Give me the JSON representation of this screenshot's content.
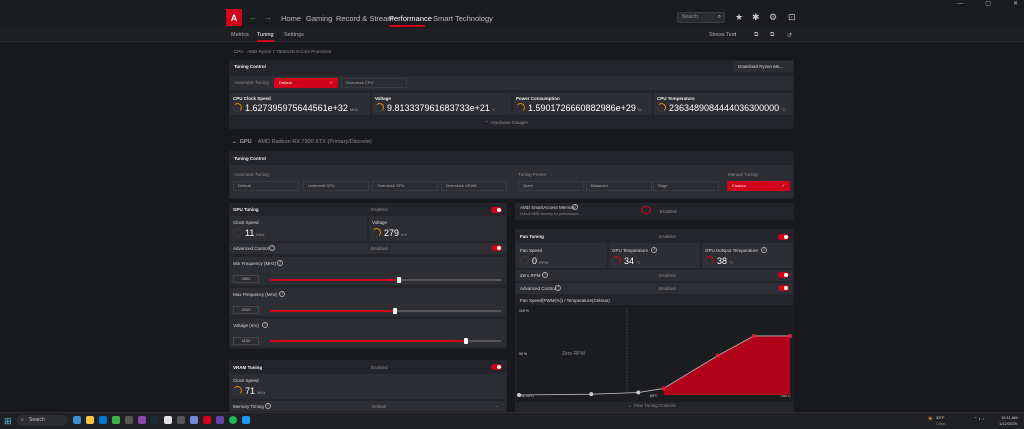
{
  "titlebar": {
    "minimize": "—",
    "maximize": "▢",
    "close": "✕"
  },
  "nav": {
    "logo": "A",
    "back": "←",
    "forward": "→",
    "items": [
      "Home",
      "Gaming",
      "Record & Stream",
      "Performance",
      "Smart Technology"
    ],
    "search_placeholder": "Search"
  },
  "subnav": {
    "items": [
      "Metrics",
      "Tuning",
      "Settings"
    ],
    "stress_test": "Stress Test"
  },
  "cpu": {
    "header": "CPU",
    "header_sub": "AMD Ryzen 7 7800X3D 8-Core Processor",
    "tuning_control": "Tuning Control",
    "download": "Download Ryzen Ma...",
    "automatic_tuning": "Automatic Tuning",
    "options": [
      "Default",
      "Overclock CPU"
    ],
    "metrics": [
      {
        "label": "CPU Clock Speed",
        "value": "1.627395975644561e+32",
        "unit": "MHz"
      },
      {
        "label": "Voltage",
        "value": "9.813337961683733e+21",
        "unit": "V"
      },
      {
        "label": "Power Consumption",
        "value": "1.5901726660882986e+29",
        "unit": "W"
      },
      {
        "label": "CPU Temperature",
        "value": "2363489084444036300000",
        "unit": "°C"
      }
    ],
    "hardware_gauges": "Hardware Gauges"
  },
  "gpu": {
    "header": "GPU",
    "header_sub": "AMD Radeon RX 7900 XTX (Primary/Discrete)",
    "tuning_control": "Tuning Control",
    "automatic_tuning": "Automatic Tuning",
    "auto_options": [
      "Default",
      "Undervolt GPU",
      "Overclock GPU",
      "Overclock VRAM"
    ],
    "tuning_preset": "Tuning Preset",
    "preset_options": [
      "Quiet",
      "Balanced",
      "Rage"
    ],
    "manual_tuning": "Manual Tuning",
    "manual_option": "Custom",
    "gpu_tuning": "GPU Tuning",
    "enabled": "Enabled",
    "clock_speed": "Clock Speed",
    "clock_value": "11",
    "clock_unit": "MHz",
    "voltage": "Voltage",
    "voltage_value": "279",
    "voltage_unit": "mV",
    "advanced_control": "Advanced Control",
    "min_freq": "Min Frequency (MHz)",
    "min_val": "2800",
    "max_freq": "Max Frequency (MHz)",
    "max_val": "2900",
    "voltage_mv": "Voltage (mV)",
    "volt_val": "1150",
    "min_pct": 0.56,
    "max_pct": 0.54,
    "volt_pct": 0.85,
    "vram_tuning": "VRAM Tuning",
    "vram_clock": "Clock Speed",
    "vram_value": "71",
    "vram_unit": "MHz",
    "memory_timing": "Memory Timing",
    "memory_default": "Default"
  },
  "sam": {
    "label": "AMD SmartAccess Memory",
    "sub": "Unlock AMD memory for performance",
    "status": "Enabled"
  },
  "fan": {
    "title": "Fan Tuning",
    "enabled": "Enabled",
    "fan_speed": "Fan Speed",
    "fan_value": "0",
    "fan_unit": "RPM",
    "gpu_temp": "GPU Temperature",
    "gpu_temp_value": "34",
    "gpu_temp_unit": "°C",
    "hotspot": "GPU Hotspot Temperature",
    "hotspot_value": "38",
    "hotspot_unit": "°C",
    "zero_rpm": "Zero RPM",
    "zero_status": "Enabled",
    "advanced": "Advanced Control",
    "adv_status": "Enabled",
    "curve_title": "Fan Speed(PWM(%)) / Temperature(Celsius)",
    "y_top": "100 %",
    "y_mid": "50 %",
    "origin": "0%, 25°C",
    "x_mid": "60°C",
    "x_end": "100°C",
    "zero_rpm_label": "Zero RPM",
    "fine": "Fine Tuning Controls",
    "curve": [
      [
        25,
        0
      ],
      [
        45,
        1
      ],
      [
        58,
        3
      ],
      [
        65,
        8
      ],
      [
        80,
        48
      ],
      [
        90,
        72
      ],
      [
        100,
        72
      ]
    ]
  },
  "taskbar": {
    "search": "Search",
    "weather": "33°F",
    "weather_sub": "Clear",
    "time": "10:11 AM",
    "date": "1/12/2025"
  },
  "colors": {
    "accent": "#d0021b",
    "bg": "#18191c",
    "panel": "#24252a"
  }
}
